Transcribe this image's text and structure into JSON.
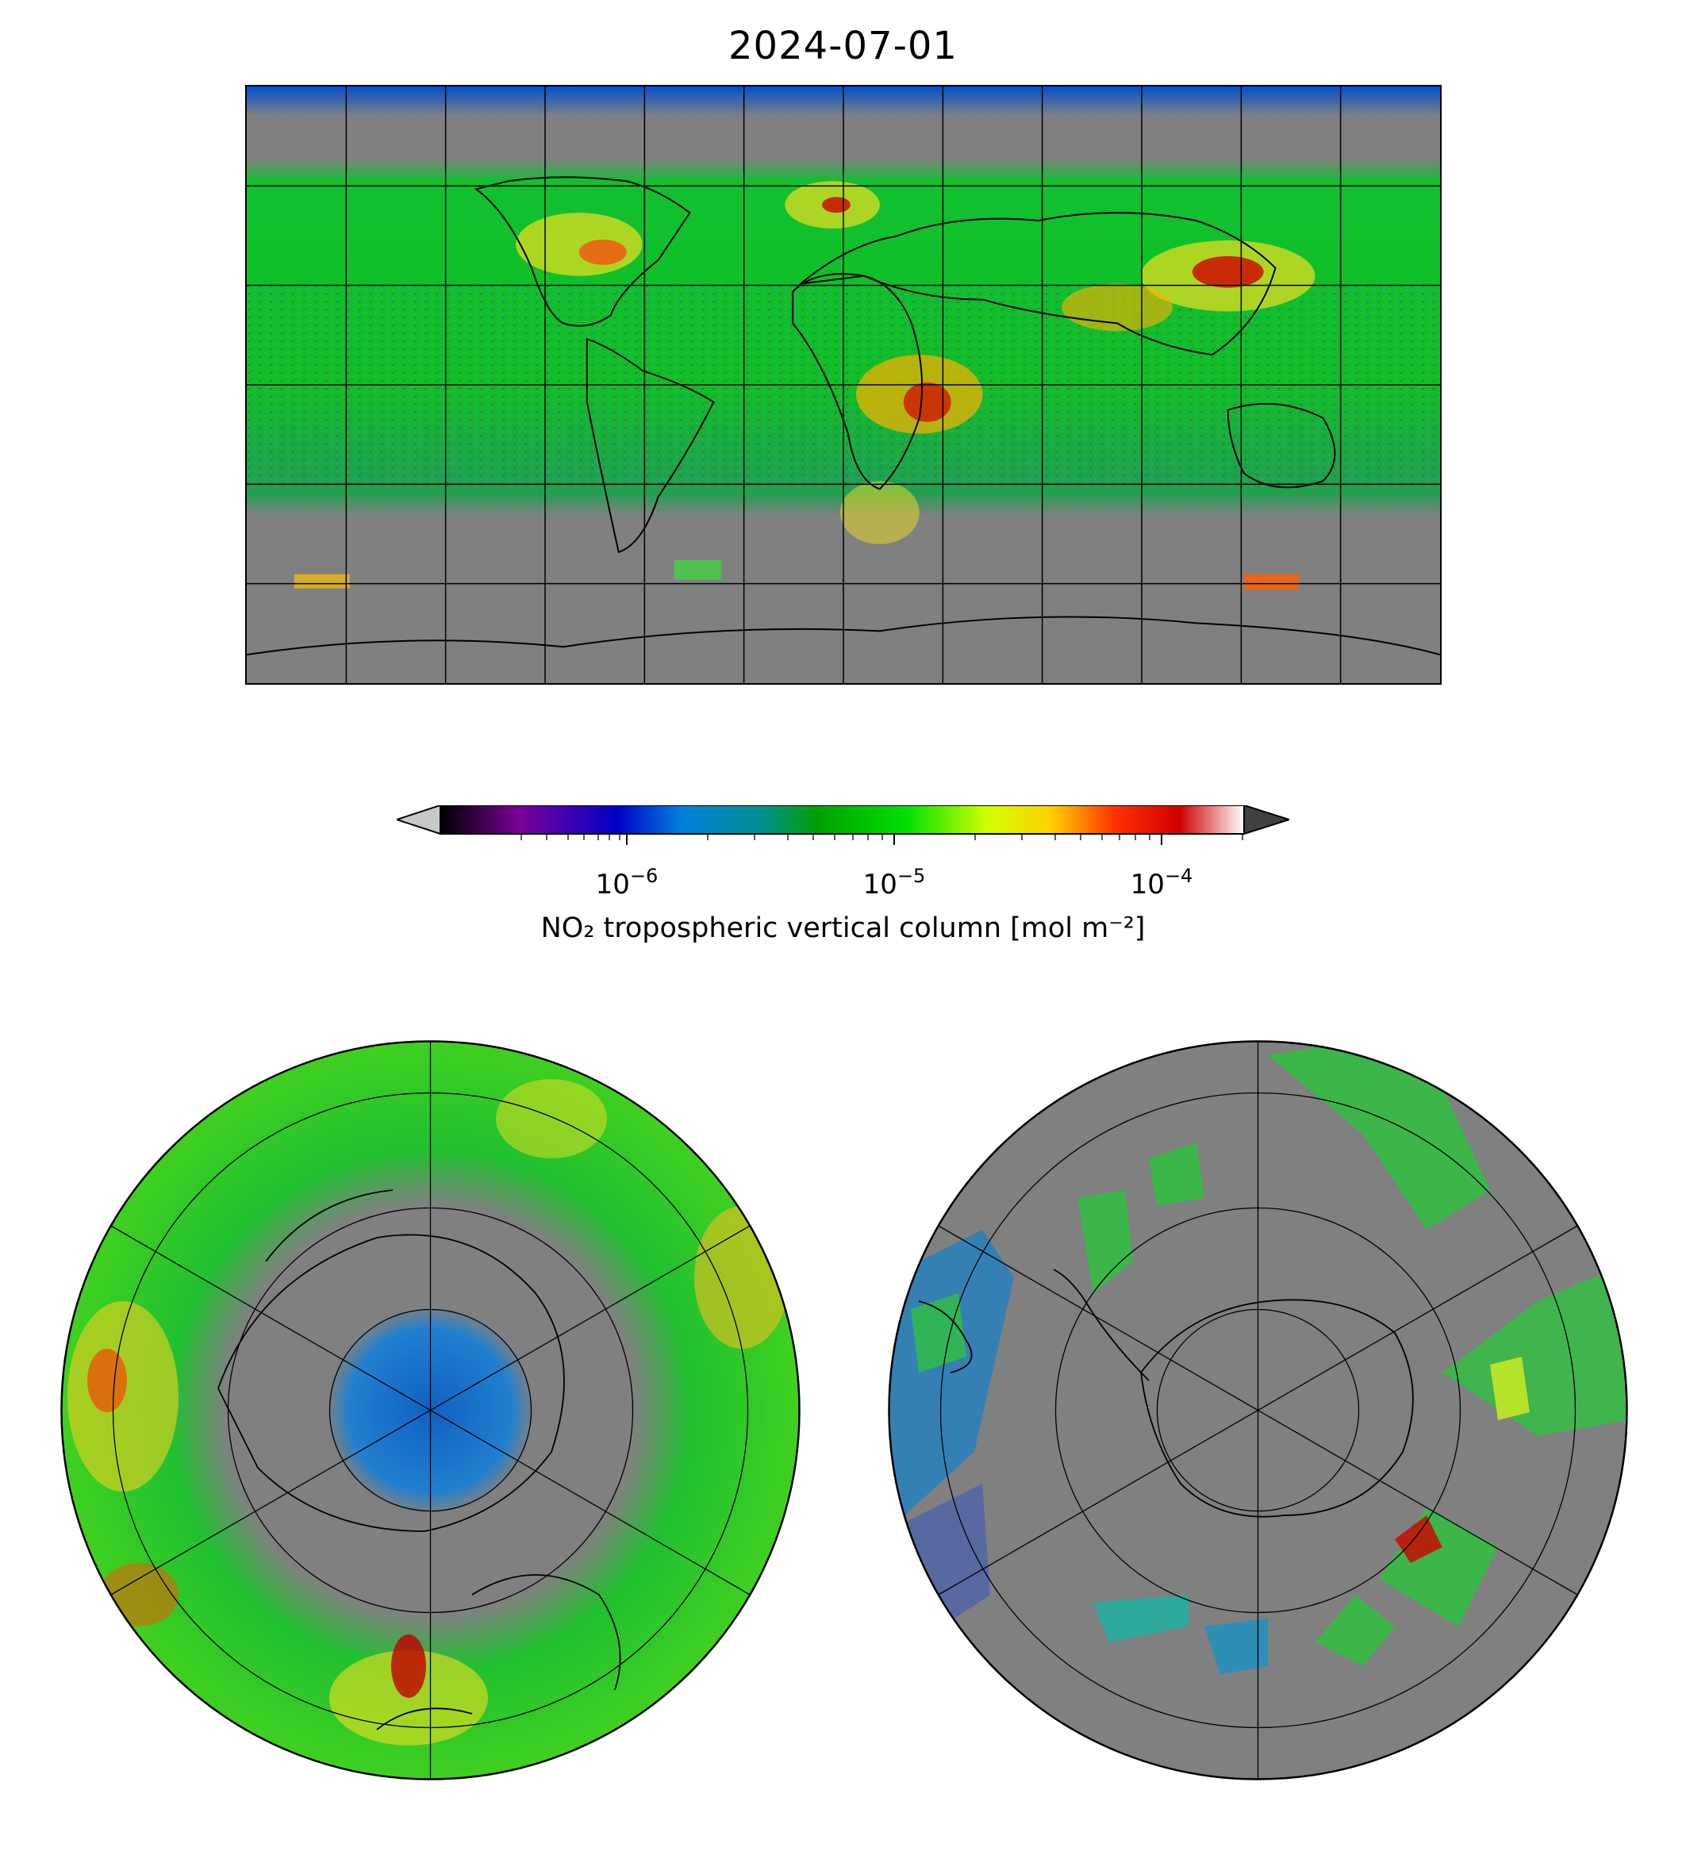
{
  "title": "2024-07-01",
  "colorbar": {
    "scale": "log",
    "range": [
      2e-07,
      0.0002
    ],
    "ticks": [
      {
        "value": 1e-06,
        "base": "10",
        "exp": "−6"
      },
      {
        "value": 1e-05,
        "base": "10",
        "exp": "−5"
      },
      {
        "value": 0.0001,
        "base": "10",
        "exp": "−4"
      }
    ],
    "label": "NO₂ tropospheric vertical column [mol m⁻²]",
    "extend": "both",
    "under_color": "#c8c8c8",
    "over_color": "#404040",
    "colormap_stops": [
      "#000000",
      "#7a0099",
      "#0000c8",
      "#0080dc",
      "#009090",
      "#00a000",
      "#00e000",
      "#d0ff00",
      "#ffd000",
      "#ff3000",
      "#d00000",
      "#ffffff"
    ]
  },
  "maps": {
    "global": {
      "projection": "PlateCarree",
      "gridlines_lon_deg": 30,
      "gridlines_lat_deg": 30
    },
    "north": {
      "projection": "NorthPolarStereo"
    },
    "south": {
      "projection": "SouthPolarStereo"
    }
  },
  "colors": {
    "no_data": "#808080",
    "coastline": "#000000",
    "gridline": "#000000"
  }
}
